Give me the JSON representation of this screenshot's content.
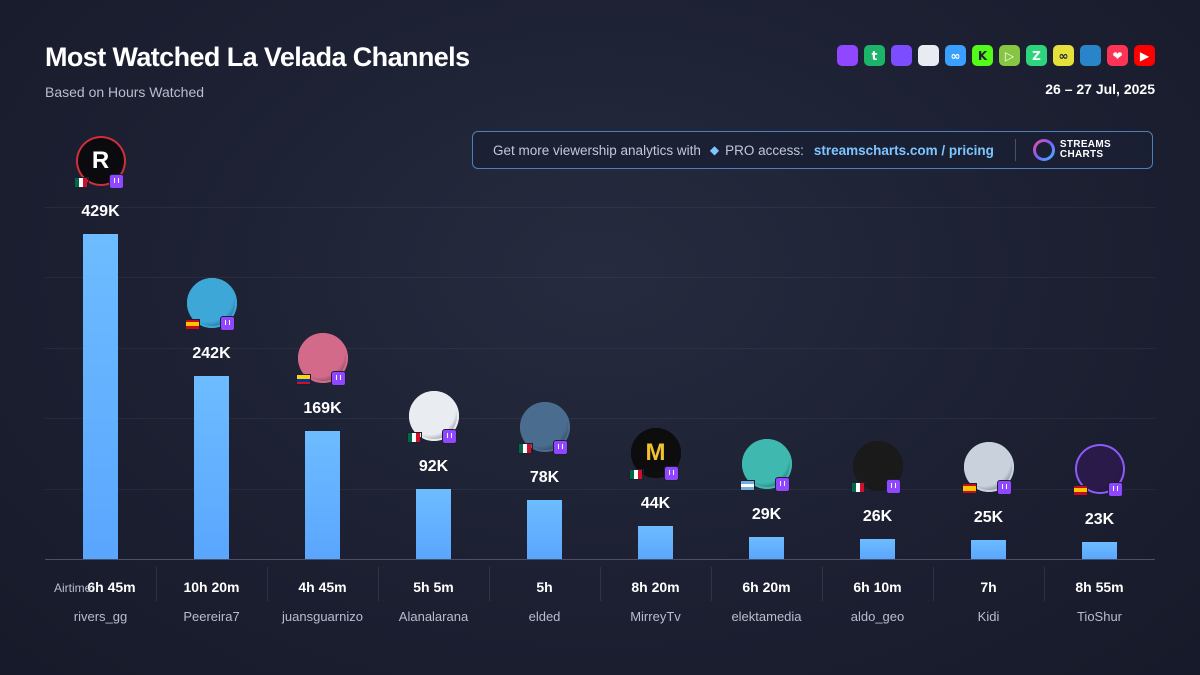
{
  "header": {
    "title": "Most Watched La Velada Channels",
    "subtitle": "Based on Hours Watched",
    "date": "26 – 27 Jul, 2025"
  },
  "platforms": [
    {
      "name": "twitch-icon",
      "glyph": "",
      "color": "#9146ff"
    },
    {
      "name": "trovo-icon",
      "glyph": "t",
      "color": "#1cb36b"
    },
    {
      "name": "vk-play-icon",
      "glyph": "",
      "color": "#7c4dff"
    },
    {
      "name": "ghost-icon",
      "glyph": "",
      "color": "#e8ecf2"
    },
    {
      "name": "infinity-blue-icon",
      "glyph": "∞",
      "color": "#3aa0ff"
    },
    {
      "name": "kick-icon",
      "glyph": "K",
      "color": "#53fc18"
    },
    {
      "name": "rumble-icon",
      "glyph": "▷",
      "color": "#85c742"
    },
    {
      "name": "zuzu-icon",
      "glyph": "Z",
      "color": "#2bd47d"
    },
    {
      "name": "infinity-yellow-icon",
      "glyph": "∞",
      "color": "#e6e03a"
    },
    {
      "name": "steam-icon",
      "glyph": "",
      "color": "#2a84c9"
    },
    {
      "name": "heart-icon",
      "glyph": "❤",
      "color": "#ff3355"
    },
    {
      "name": "youtube-icon",
      "glyph": "▶",
      "color": "#ff0000"
    }
  ],
  "promo": {
    "text": "Get more viewership analytics with",
    "pro": "PRO access:",
    "link": "streamscharts.com / pricing",
    "brand_line1": "STREAMS",
    "brand_line2": "CHARTS"
  },
  "airtime_label": "Airtime:",
  "colors": {
    "bar": "#5aa6ff",
    "promo_border": "#4e7fb8",
    "twitch": "#9146ff"
  },
  "chart_data": {
    "type": "bar",
    "title": "Most Watched La Velada Channels",
    "subtitle": "Based on Hours Watched",
    "ylim": [
      0,
      500000
    ],
    "grid": true,
    "categories": [
      "rivers_gg",
      "Peereira7",
      "juansguarnizo",
      "Alanalarana",
      "elded",
      "MirreyTv",
      "elektamedia",
      "aldo_geo",
      "Kidi",
      "TioShur"
    ],
    "values": [
      429000,
      242000,
      169000,
      92000,
      78000,
      44000,
      29000,
      26000,
      25000,
      23000
    ],
    "labels": [
      "429K",
      "242K",
      "169K",
      "92K",
      "78K",
      "44K",
      "29K",
      "26K",
      "25K",
      "23K"
    ],
    "airtime": [
      "6h 45m",
      "10h 20m",
      "4h 45m",
      "5h 5m",
      "5h",
      "8h 20m",
      "6h 20m",
      "6h 10m",
      "7h",
      "8h 55m"
    ],
    "countries": [
      "mx",
      "es",
      "co",
      "mx",
      "mx",
      "mx",
      "ar",
      "mx",
      "es",
      "es"
    ],
    "avatars": [
      {
        "letter": "R",
        "bg": "#0b0b0f",
        "ring": "#d0303a",
        "fg": "#ffffff"
      },
      {
        "letter": "",
        "bg": "#3da8d8",
        "ring": "#3da8d8",
        "fg": "#ffffff"
      },
      {
        "letter": "",
        "bg": "#d46a8a",
        "ring": "#d46a8a",
        "fg": "#ffffff"
      },
      {
        "letter": "",
        "bg": "#e9ecf0",
        "ring": "#e9ecf0",
        "fg": "#222222"
      },
      {
        "letter": "",
        "bg": "#4a6c8e",
        "ring": "#4a6c8e",
        "fg": "#ffffff"
      },
      {
        "letter": "M",
        "bg": "#0d0d0d",
        "ring": "#0d0d0d",
        "fg": "#f2c12e"
      },
      {
        "letter": "",
        "bg": "#3fb8b0",
        "ring": "#3fb8b0",
        "fg": "#ffffff"
      },
      {
        "letter": "",
        "bg": "#1a1a1a",
        "ring": "#1a1a1a",
        "fg": "#e03030"
      },
      {
        "letter": "",
        "bg": "#c9d2dc",
        "ring": "#c9d2dc",
        "fg": "#222222"
      },
      {
        "letter": "",
        "bg": "#2a1a4a",
        "ring": "#8a5cf5",
        "fg": "#a07cff"
      }
    ]
  }
}
